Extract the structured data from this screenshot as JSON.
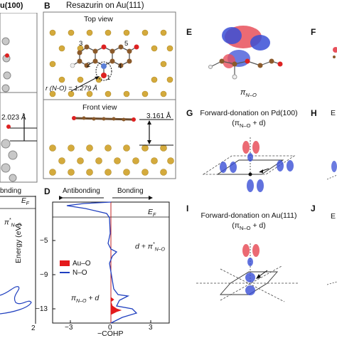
{
  "figure": {
    "panel_labels": [
      "B",
      "D",
      "E",
      "F",
      "G",
      "H",
      "I",
      "J"
    ],
    "left_strip": {
      "title_fragment": "u(100)",
      "distance": "2.023 Å",
      "bonding_fragment": "bnding",
      "ef_label": "E",
      "ef_sub": "F",
      "pi_label": "π",
      "pi_sub": "N–O",
      "x_tick": "2"
    },
    "panel_b": {
      "title": "Resazurin on Au(111)",
      "top_view": "Top view",
      "front_view": "Front view",
      "atom_labels": [
        "1",
        "2",
        "3",
        "4",
        "5"
      ],
      "bond_label": "r (N-O) = 1.279 Å",
      "front_distance": "3.161 Å"
    },
    "panel_d": {
      "antibonding": "Antibonding",
      "bonding": "Bonding",
      "ef_label": "E",
      "ef_sub": "F",
      "y_axis_label": "Energy (eV)",
      "x_axis_label": "−COHP",
      "y_ticks": [
        "−5",
        "−9",
        "−13"
      ],
      "x_ticks": [
        "−3",
        "0",
        "3"
      ],
      "legend": [
        {
          "name": "Au–O",
          "color": "#e41a1c"
        },
        {
          "name": "N–O",
          "color": "#1f3fbf"
        }
      ],
      "annotation_top": "d + π",
      "annotation_top_sub": "N–O",
      "annotation_bottom": "π",
      "annotation_bottom_sub": "N–O",
      "annotation_bottom_suffix": " + d"
    },
    "panel_e": {
      "caption": "π",
      "caption_sub": "N–O"
    },
    "panel_g": {
      "title": "Forward-donation on Pd(100)",
      "subtitle": "(π",
      "subtitle_sub": "N–O",
      "subtitle_suffix": " + d)"
    },
    "panel_h": {
      "fragment": "E"
    },
    "panel_i": {
      "title": "Forward-donation on Au(111)",
      "subtitle": "(π",
      "subtitle_sub": "N–O",
      "subtitle_suffix": " + d)"
    },
    "panel_j": {
      "fragment": "E"
    }
  }
}
